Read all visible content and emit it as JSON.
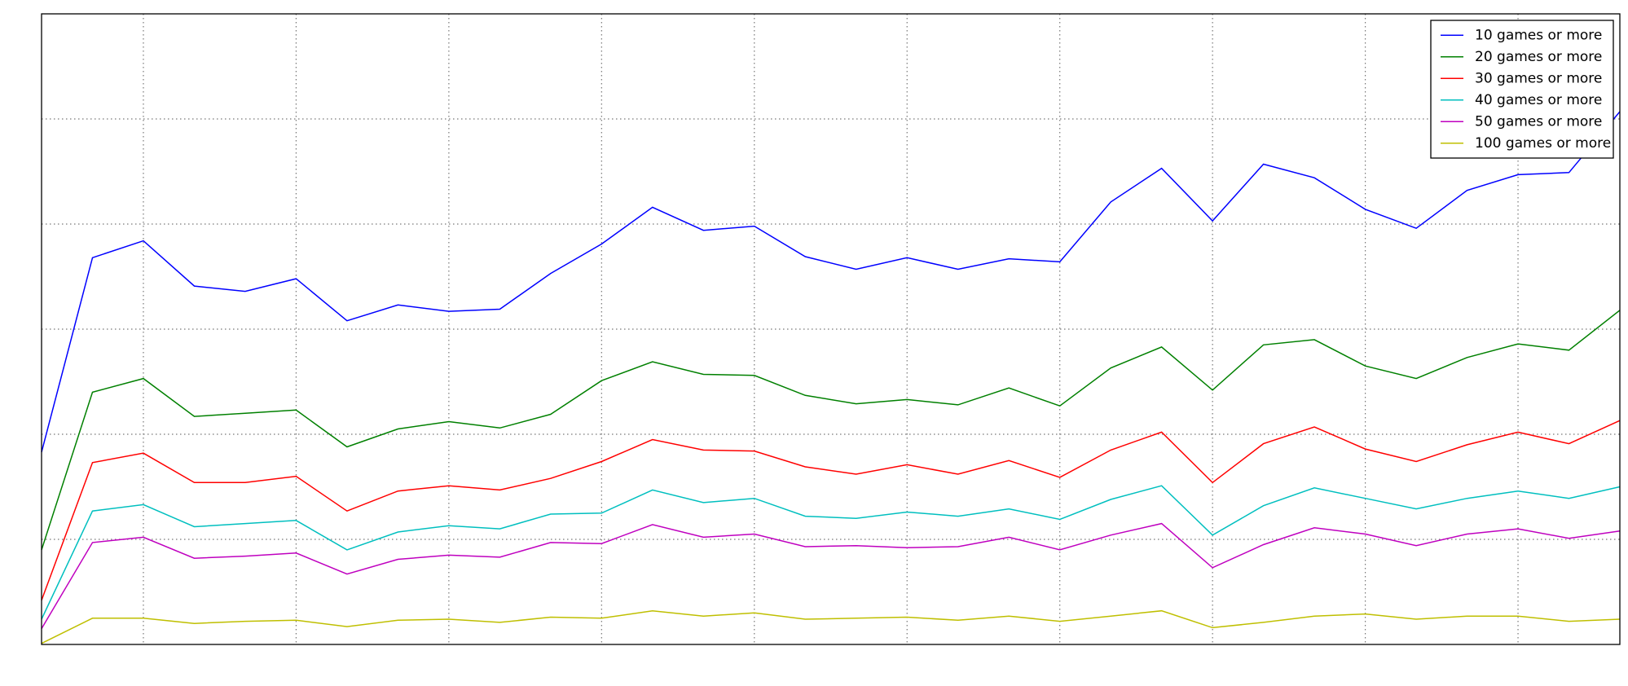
{
  "chart_data": {
    "type": "line",
    "x": [
      0,
      1,
      2,
      3,
      4,
      5,
      6,
      7,
      8,
      9,
      10,
      11,
      12,
      13,
      14,
      15,
      16,
      17,
      18,
      19,
      20,
      21,
      22,
      23,
      24,
      25,
      26,
      27,
      28,
      29,
      30,
      31
    ],
    "xlim": [
      0,
      31
    ],
    "xticks": [
      2,
      5,
      8,
      11,
      14,
      17,
      20,
      23,
      26,
      29
    ],
    "ylim": [
      0,
      6
    ],
    "yticks": [
      1,
      2,
      3,
      4,
      5
    ],
    "grid": true,
    "legend": "upper right",
    "series": [
      {
        "name": "10 games or more",
        "color": "#0000ff",
        "values": [
          1.83,
          3.68,
          3.84,
          3.41,
          3.36,
          3.48,
          3.08,
          3.23,
          3.17,
          3.19,
          3.53,
          3.81,
          4.16,
          3.94,
          3.98,
          3.69,
          3.57,
          3.68,
          3.57,
          3.67,
          3.64,
          4.21,
          4.53,
          4.03,
          4.57,
          4.44,
          4.14,
          3.96,
          4.32,
          4.47,
          4.49,
          5.07
        ]
      },
      {
        "name": "20 games or more",
        "color": "#008000",
        "values": [
          0.9,
          2.4,
          2.53,
          2.17,
          2.2,
          2.23,
          1.88,
          2.05,
          2.12,
          2.06,
          2.19,
          2.51,
          2.69,
          2.57,
          2.56,
          2.37,
          2.29,
          2.33,
          2.28,
          2.44,
          2.27,
          2.63,
          2.83,
          2.42,
          2.85,
          2.9,
          2.65,
          2.53,
          2.73,
          2.86,
          2.8,
          3.18
        ]
      },
      {
        "name": "30 games or more",
        "color": "#ff0000",
        "values": [
          0.42,
          1.73,
          1.82,
          1.54,
          1.54,
          1.6,
          1.27,
          1.46,
          1.51,
          1.47,
          1.58,
          1.74,
          1.95,
          1.85,
          1.84,
          1.69,
          1.62,
          1.71,
          1.62,
          1.75,
          1.59,
          1.85,
          2.02,
          1.54,
          1.91,
          2.07,
          1.86,
          1.74,
          1.9,
          2.02,
          1.91,
          2.13
        ]
      },
      {
        "name": "40 games or more",
        "color": "#00bfbf",
        "values": [
          0.24,
          1.27,
          1.33,
          1.12,
          1.15,
          1.18,
          0.9,
          1.07,
          1.13,
          1.1,
          1.24,
          1.25,
          1.47,
          1.35,
          1.39,
          1.22,
          1.2,
          1.26,
          1.22,
          1.29,
          1.19,
          1.38,
          1.51,
          1.04,
          1.32,
          1.49,
          1.39,
          1.29,
          1.39,
          1.46,
          1.39,
          1.5
        ]
      },
      {
        "name": "50 games or more",
        "color": "#bf00bf",
        "values": [
          0.15,
          0.97,
          1.02,
          0.82,
          0.84,
          0.87,
          0.67,
          0.81,
          0.85,
          0.83,
          0.97,
          0.96,
          1.14,
          1.02,
          1.05,
          0.93,
          0.94,
          0.92,
          0.93,
          1.02,
          0.9,
          1.04,
          1.15,
          0.73,
          0.95,
          1.11,
          1.05,
          0.94,
          1.05,
          1.1,
          1.01,
          1.08
        ]
      },
      {
        "name": "100 games or more",
        "color": "#bfbf00",
        "values": [
          0.01,
          0.25,
          0.25,
          0.2,
          0.22,
          0.23,
          0.17,
          0.23,
          0.24,
          0.21,
          0.26,
          0.25,
          0.32,
          0.27,
          0.3,
          0.24,
          0.25,
          0.26,
          0.23,
          0.27,
          0.22,
          0.27,
          0.32,
          0.16,
          0.21,
          0.27,
          0.29,
          0.24,
          0.27,
          0.27,
          0.22,
          0.24
        ]
      }
    ]
  }
}
